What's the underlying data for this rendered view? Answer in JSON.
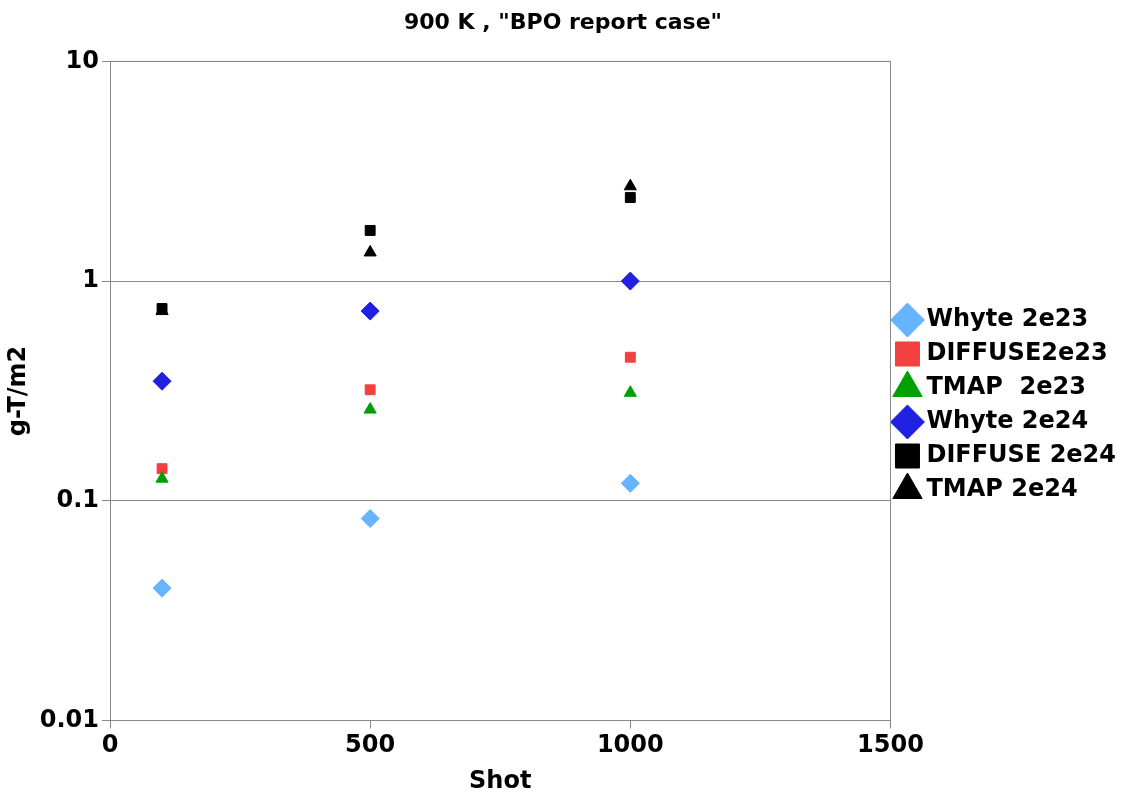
{
  "chart_data": {
    "type": "scatter",
    "title": "900 K , \"BPO report case\"",
    "xlabel": "Shot",
    "ylabel": "g-T/m2",
    "log": "y",
    "grid": "y",
    "legend": "right",
    "xlim": [
      0,
      1500
    ],
    "xticks": [
      0,
      500,
      1000,
      1500
    ],
    "ylim": [
      0.01,
      10
    ],
    "yticks": [
      0.01,
      0.1,
      1,
      10
    ],
    "series": [
      {
        "name": "Whyte 2e23",
        "color": "#66b3ff",
        "marker": "diamond",
        "x": [
          100,
          500,
          1000
        ],
        "values": [
          0.04,
          0.083,
          0.12
        ]
      },
      {
        "name": "DIFFUSE2e23",
        "color": "#f04040",
        "marker": "square",
        "x": [
          100,
          500,
          1000
        ],
        "values": [
          0.14,
          0.32,
          0.45
        ]
      },
      {
        "name": "TMAP  2e23",
        "color": "#00a000",
        "marker": "triangle",
        "x": [
          100,
          500,
          1000
        ],
        "values": [
          0.126,
          0.26,
          0.31
        ]
      },
      {
        "name": "Whyte 2e24",
        "color": "#2020e0",
        "marker": "diamond",
        "x": [
          100,
          500,
          1000
        ],
        "values": [
          0.35,
          0.73,
          1.0
        ]
      },
      {
        "name": "DIFFUSE 2e24",
        "color": "#000000",
        "marker": "square",
        "x": [
          100,
          500,
          1000
        ],
        "values": [
          0.75,
          1.7,
          2.4
        ]
      },
      {
        "name": "TMAP 2e24",
        "color": "#000000",
        "marker": "triangle",
        "x": [
          100,
          500,
          1000
        ],
        "values": [
          0.73,
          1.35,
          2.7
        ]
      }
    ]
  }
}
